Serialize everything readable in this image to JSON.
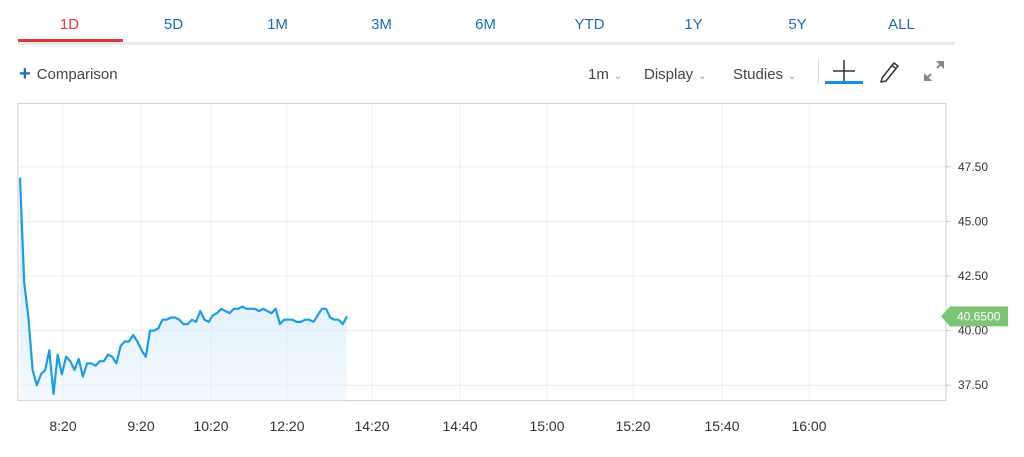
{
  "range_tabs": [
    {
      "label": "1D",
      "active": true
    },
    {
      "label": "5D",
      "active": false
    },
    {
      "label": "1M",
      "active": false
    },
    {
      "label": "3M",
      "active": false
    },
    {
      "label": "6M",
      "active": false
    },
    {
      "label": "YTD",
      "active": false
    },
    {
      "label": "1Y",
      "active": false
    },
    {
      "label": "5Y",
      "active": false
    },
    {
      "label": "ALL",
      "active": false
    }
  ],
  "toolbar": {
    "comparison_label": "Comparison",
    "interval_label": "1m",
    "display_label": "Display",
    "studies_label": "Studies",
    "tools": [
      "crosshair-icon",
      "pencil-icon",
      "expand-icon"
    ],
    "active_tool": "crosshair-icon"
  },
  "colors": {
    "active_tab": "#d93b3b",
    "tab_text": "#1c6bb1",
    "line": "#1c9ce6",
    "price_badge": "#7cc575"
  },
  "chart_data": {
    "type": "area",
    "title": "",
    "xlabel": "",
    "ylabel": "",
    "x_tick_labels": [
      "8:20",
      "9:20",
      "10:20",
      "12:20",
      "14:20",
      "14:40",
      "15:00",
      "15:20",
      "15:40",
      "16:00"
    ],
    "y_tick_labels": [
      "47.50",
      "45.00",
      "42.50",
      "40.00",
      "37.50"
    ],
    "y_ticks": [
      47.5,
      45.0,
      42.5,
      40.0,
      37.5
    ],
    "ylim": [
      36.8,
      50.4
    ],
    "grid": true,
    "current_price_label": "40.6500",
    "current_price": 40.65,
    "series": [
      {
        "values": [
          47.0,
          42.2,
          40.6,
          38.2,
          37.5,
          38.0,
          38.2,
          39.1,
          37.1,
          38.9,
          38.0,
          38.8,
          38.6,
          38.2,
          38.7,
          37.9,
          38.5,
          38.5,
          38.4,
          38.6,
          38.6,
          38.9,
          38.8,
          38.5,
          39.3,
          39.5,
          39.5,
          39.8,
          39.5,
          39.1,
          38.8,
          40.0,
          40.0,
          40.1,
          40.5,
          40.5,
          40.6,
          40.6,
          40.5,
          40.3,
          40.3,
          40.5,
          40.4,
          40.9,
          40.5,
          40.4,
          40.7,
          40.8,
          41.0,
          40.9,
          40.8,
          41.0,
          41.0,
          41.1,
          41.0,
          41.0,
          41.0,
          40.9,
          41.0,
          40.9,
          40.8,
          41.0,
          40.3,
          40.5,
          40.5,
          40.5,
          40.4,
          40.4,
          40.5,
          40.5,
          40.4,
          40.7,
          41.0,
          41.0,
          40.6,
          40.5,
          40.5,
          40.3,
          40.65
        ]
      }
    ]
  }
}
